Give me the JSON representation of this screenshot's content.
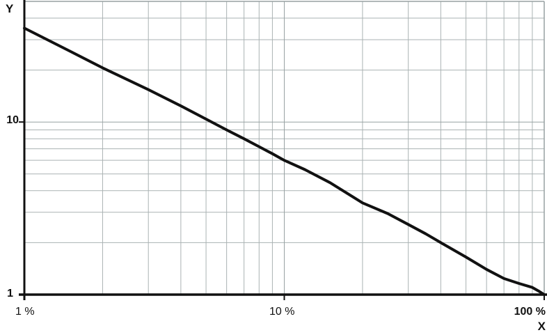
{
  "labels": {
    "y_axis_title": "Y",
    "x_axis_title": "X",
    "y_tick_major": "10",
    "y_tick_base": "1",
    "x_tick_base": "1 %",
    "x_tick_major": "10 %",
    "x_tick_max": "100 %"
  },
  "chart_data": {
    "type": "line",
    "title": "",
    "xlabel": "X",
    "ylabel": "Y",
    "x_scale": "log",
    "y_scale": "log",
    "x_unit": "percent",
    "xlim": [
      1,
      100
    ],
    "ylim": [
      1,
      50
    ],
    "x_tick_values": [
      1,
      10,
      100
    ],
    "x_tick_labels": [
      "1 %",
      "10 %",
      "100 %"
    ],
    "y_tick_values": [
      1,
      10
    ],
    "y_tick_labels": [
      "1",
      "10"
    ],
    "grid": "log minor gridlines on both axes (2-9 each decade), boxed top and right borders",
    "legend": "none",
    "series": [
      {
        "name": "curve",
        "x": [
          1,
          1.5,
          2,
          3,
          4,
          5,
          6,
          7,
          8,
          9,
          10,
          12,
          15,
          20,
          25,
          30,
          35,
          40,
          50,
          60,
          70,
          80,
          90,
          95,
          100
        ],
        "y": [
          35,
          25.7,
          20.6,
          15.4,
          12.4,
          10.4,
          9.0,
          8.0,
          7.2,
          6.55,
          6.0,
          5.3,
          4.45,
          3.4,
          2.95,
          2.55,
          2.25,
          2.0,
          1.65,
          1.4,
          1.24,
          1.16,
          1.1,
          1.05,
          1.0
        ]
      }
    ],
    "colors": {
      "curve": "#111111",
      "axis": "#111111",
      "grid_minor": "#aab2b3",
      "grid_major": "#97a1a2",
      "background": "#ffffff"
    }
  }
}
